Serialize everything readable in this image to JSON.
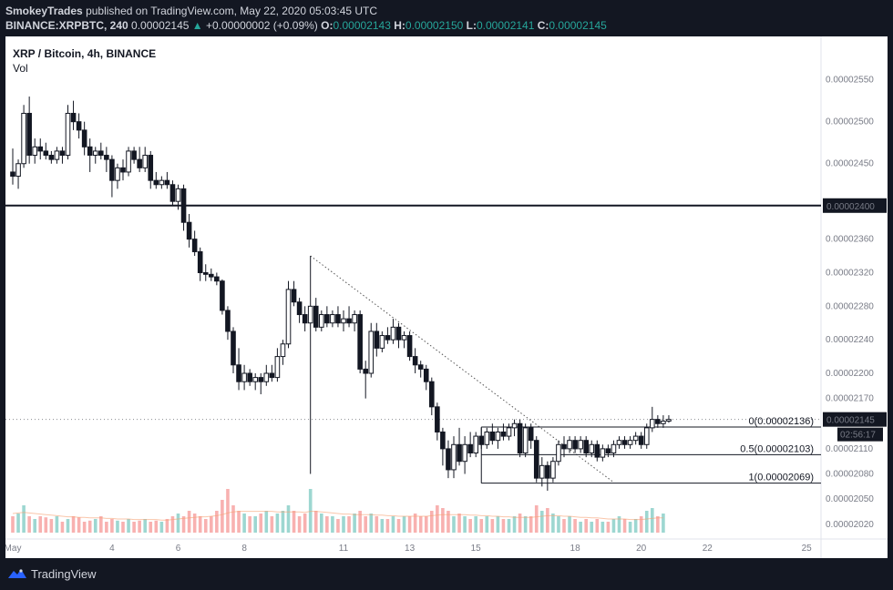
{
  "header": {
    "author": "SmokeyTrades",
    "published_text": "published on TradingView.com, May 22, 2020 05:03:45 UTC",
    "symbol": "BINANCE:XRPBTC, 240",
    "price": "0.00002145",
    "change_arrow": "▲",
    "change": "+0.00000002 (+0.09%)",
    "o_label": "O:",
    "o_value": "0.00002143",
    "h_label": "H:",
    "h_value": "0.00002150",
    "l_label": "L:",
    "l_value": "0.00002141",
    "c_label": "C:",
    "c_value": "0.00002145"
  },
  "legend": {
    "title": "XRP / Bitcoin, 4h, BINANCE",
    "volume_label": "Vol"
  },
  "footer": {
    "brand": "TradingView",
    "logo_icon": "tradingview-logo-icon"
  },
  "colors": {
    "background": "#ffffff",
    "candle_up": "#ffffff",
    "candle_down": "#131722",
    "grid_text": "#787b86",
    "vol_up": "#26a69a",
    "vol_down": "#ef5350"
  },
  "chart_data": {
    "type": "candlestick",
    "title": "XRP / Bitcoin, 4h, BINANCE",
    "ylim": [
      2.01e-05,
      2.58e-05
    ],
    "y_ticks": [
      "0.00002550",
      "0.00002500",
      "0.00002450",
      "0.00002400",
      "0.00002360",
      "0.00002320",
      "0.00002280",
      "0.00002240",
      "0.00002200",
      "0.00002170",
      "0.00002140",
      "0.00002110",
      "0.00002080",
      "0.00002050",
      "0.00002020"
    ],
    "x_ticks": [
      {
        "label": "May",
        "bar": 0
      },
      {
        "label": "4",
        "bar": 18
      },
      {
        "label": "6",
        "bar": 30
      },
      {
        "label": "8",
        "bar": 42
      },
      {
        "label": "11",
        "bar": 60
      },
      {
        "label": "13",
        "bar": 72
      },
      {
        "label": "15",
        "bar": 84
      },
      {
        "label": "18",
        "bar": 102
      },
      {
        "label": "20",
        "bar": 114
      },
      {
        "label": "22",
        "bar": 126
      },
      {
        "label": "25",
        "bar": 144
      }
    ],
    "ohlc": [
      [
        2.44e-05,
        2.468e-05,
        2.425e-05,
        2.435e-05
      ],
      [
        2.435e-05,
        2.455e-05,
        2.42e-05,
        2.45e-05
      ],
      [
        2.45e-05,
        2.52e-05,
        2.445e-05,
        2.51e-05
      ],
      [
        2.51e-05,
        2.53e-05,
        2.45e-05,
        2.46e-05
      ],
      [
        2.46e-05,
        2.48e-05,
        2.45e-05,
        2.47e-05
      ],
      [
        2.47e-05,
        2.48e-05,
        2.455e-05,
        2.465e-05
      ],
      [
        2.465e-05,
        2.475e-05,
        2.455e-05,
        2.46e-05
      ],
      [
        2.46e-05,
        2.465e-05,
        2.45e-05,
        2.455e-05
      ],
      [
        2.455e-05,
        2.47e-05,
        2.45e-05,
        2.465e-05
      ],
      [
        2.465e-05,
        2.47e-05,
        2.45e-05,
        2.46e-05
      ],
      [
        2.46e-05,
        2.52e-05,
        2.455e-05,
        2.51e-05
      ],
      [
        2.51e-05,
        2.525e-05,
        2.49e-05,
        2.5e-05
      ],
      [
        2.5e-05,
        2.51e-05,
        2.48e-05,
        2.49e-05
      ],
      [
        2.49e-05,
        2.5e-05,
        2.46e-05,
        2.47e-05
      ],
      [
        2.47e-05,
        2.48e-05,
        2.44e-05,
        2.46e-05
      ],
      [
        2.46e-05,
        2.47e-05,
        2.45e-05,
        2.465e-05
      ],
      [
        2.465e-05,
        2.475e-05,
        2.455e-05,
        2.46e-05
      ],
      [
        2.46e-05,
        2.47e-05,
        2.44e-05,
        2.455e-05
      ],
      [
        2.455e-05,
        2.46e-05,
        2.41e-05,
        2.43e-05
      ],
      [
        2.43e-05,
        2.45e-05,
        2.42e-05,
        2.445e-05
      ],
      [
        2.445e-05,
        2.455e-05,
        2.43e-05,
        2.44e-05
      ],
      [
        2.44e-05,
        2.47e-05,
        2.435e-05,
        2.465e-05
      ],
      [
        2.465e-05,
        2.47e-05,
        2.45e-05,
        2.455e-05
      ],
      [
        2.455e-05,
        2.47e-05,
        2.44e-05,
        2.445e-05
      ],
      [
        2.445e-05,
        2.47e-05,
        2.44e-05,
        2.46e-05
      ],
      [
        2.46e-05,
        2.465e-05,
        2.42e-05,
        2.43e-05
      ],
      [
        2.43e-05,
        2.44e-05,
        2.42e-05,
        2.425e-05
      ],
      [
        2.425e-05,
        2.435e-05,
        2.42e-05,
        2.43e-05
      ],
      [
        2.43e-05,
        2.44e-05,
        2.42e-05,
        2.425e-05
      ],
      [
        2.425e-05,
        2.43e-05,
        2.4e-05,
        2.405e-05
      ],
      [
        2.405e-05,
        2.425e-05,
        2.395e-05,
        2.42e-05
      ],
      [
        2.42e-05,
        2.425e-05,
        2.37e-05,
        2.38e-05
      ],
      [
        2.38e-05,
        2.39e-05,
        2.35e-05,
        2.36e-05
      ],
      [
        2.36e-05,
        2.37e-05,
        2.34e-05,
        2.345e-05
      ],
      [
        2.345e-05,
        2.35e-05,
        2.31e-05,
        2.32e-05
      ],
      [
        2.32e-05,
        2.33e-05,
        2.31e-05,
        2.318e-05
      ],
      [
        2.318e-05,
        2.325e-05,
        2.31e-05,
        2.315e-05
      ],
      [
        2.315e-05,
        2.32e-05,
        2.305e-05,
        2.31e-05
      ],
      [
        2.31e-05,
        2.312e-05,
        2.27e-05,
        2.275e-05
      ],
      [
        2.275e-05,
        2.28e-05,
        2.24e-05,
        2.25e-05
      ],
      [
        2.25e-05,
        2.255e-05,
        2.2e-05,
        2.21e-05
      ],
      [
        2.21e-05,
        2.23e-05,
        2.18e-05,
        2.19e-05
      ],
      [
        2.19e-05,
        2.21e-05,
        2.18e-05,
        2.2e-05
      ],
      [
        2.2e-05,
        2.205e-05,
        2.185e-05,
        2.19e-05
      ],
      [
        2.19e-05,
        2.2e-05,
        2.18e-05,
        2.195e-05
      ],
      [
        2.195e-05,
        2.2e-05,
        2.175e-05,
        2.19e-05
      ],
      [
        2.19e-05,
        2.21e-05,
        2.185e-05,
        2.2e-05
      ],
      [
        2.2e-05,
        2.21e-05,
        2.19e-05,
        2.195e-05
      ],
      [
        2.195e-05,
        2.23e-05,
        2.19e-05,
        2.22e-05
      ],
      [
        2.22e-05,
        2.24e-05,
        2.21e-05,
        2.235e-05
      ],
      [
        2.235e-05,
        2.31e-05,
        2.23e-05,
        2.3e-05
      ],
      [
        2.3e-05,
        2.31e-05,
        2.28e-05,
        2.285e-05
      ],
      [
        2.285e-05,
        2.29e-05,
        2.26e-05,
        2.27e-05
      ],
      [
        2.27e-05,
        2.28e-05,
        2.25e-05,
        2.26e-05
      ],
      [
        2.26e-05,
        2.34e-05,
        2.08e-05,
        2.28e-05
      ],
      [
        2.28e-05,
        2.29e-05,
        2.25e-05,
        2.255e-05
      ],
      [
        2.255e-05,
        2.275e-05,
        2.25e-05,
        2.27e-05
      ],
      [
        2.27e-05,
        2.28e-05,
        2.255e-05,
        2.26e-05
      ],
      [
        2.26e-05,
        2.275e-05,
        2.255e-05,
        2.27e-05
      ],
      [
        2.27e-05,
        2.28e-05,
        2.255e-05,
        2.26e-05
      ],
      [
        2.26e-05,
        2.275e-05,
        2.25e-05,
        2.265e-05
      ],
      [
        2.265e-05,
        2.28e-05,
        2.255e-05,
        2.26e-05
      ],
      [
        2.26e-05,
        2.275e-05,
        2.25e-05,
        2.27e-05
      ],
      [
        2.27e-05,
        2.275e-05,
        2.2e-05,
        2.205e-05
      ],
      [
        2.205e-05,
        2.215e-05,
        2.17e-05,
        2.2e-05
      ],
      [
        2.2e-05,
        2.26e-05,
        2.195e-05,
        2.25e-05
      ],
      [
        2.25e-05,
        2.26e-05,
        2.22e-05,
        2.23e-05
      ],
      [
        2.23e-05,
        2.25e-05,
        2.225e-05,
        2.245e-05
      ],
      [
        2.245e-05,
        2.255e-05,
        2.235e-05,
        2.24e-05
      ],
      [
        2.24e-05,
        2.265e-05,
        2.235e-05,
        2.255e-05
      ],
      [
        2.255e-05,
        2.26e-05,
        2.23e-05,
        2.24e-05
      ],
      [
        2.24e-05,
        2.25e-05,
        2.23e-05,
        2.245e-05
      ],
      [
        2.245e-05,
        2.25e-05,
        2.215e-05,
        2.22e-05
      ],
      [
        2.22e-05,
        2.23e-05,
        2.2e-05,
        2.21e-05
      ],
      [
        2.21e-05,
        2.215e-05,
        2.195e-05,
        2.205e-05
      ],
      [
        2.205e-05,
        2.21e-05,
        2.18e-05,
        2.19e-05
      ],
      [
        2.19e-05,
        2.195e-05,
        2.15e-05,
        2.16e-05
      ],
      [
        2.16e-05,
        2.165e-05,
        2.12e-05,
        2.13e-05
      ],
      [
        2.13e-05,
        2.135e-05,
        2.09e-05,
        2.11e-05
      ],
      [
        2.11e-05,
        2.12e-05,
        2.075e-05,
        2.085e-05
      ],
      [
        2.085e-05,
        2.125e-05,
        2.075e-05,
        2.115e-05
      ],
      [
        2.115e-05,
        2.135e-05,
        2.09e-05,
        2.095e-05
      ],
      [
        2.095e-05,
        2.125e-05,
        2.08e-05,
        2.115e-05
      ],
      [
        2.115e-05,
        2.13e-05,
        2.1e-05,
        2.105e-05
      ],
      [
        2.105e-05,
        2.13e-05,
        2.1e-05,
        2.125e-05
      ],
      [
        2.125e-05,
        2.135e-05,
        2.11e-05,
        2.115e-05
      ],
      [
        2.115e-05,
        2.135e-05,
        2.11e-05,
        2.13e-05
      ],
      [
        2.13e-05,
        2.14e-05,
        2.115e-05,
        2.12e-05
      ],
      [
        2.12e-05,
        2.135e-05,
        2.11e-05,
        2.13e-05
      ],
      [
        2.13e-05,
        2.14e-05,
        2.12e-05,
        2.125e-05
      ],
      [
        2.125e-05,
        2.14e-05,
        2.12e-05,
        2.135e-05
      ],
      [
        2.135e-05,
        2.145e-05,
        2.125e-05,
        2.14e-05
      ],
      [
        2.14e-05,
        2.145e-05,
        2.1e-05,
        2.105e-05
      ],
      [
        2.105e-05,
        2.14e-05,
        2.1e-05,
        2.135e-05
      ],
      [
        2.135e-05,
        2.14e-05,
        2.11e-05,
        2.12e-05
      ],
      [
        2.12e-05,
        2.125e-05,
        2.07e-05,
        2.075e-05
      ],
      [
        2.075e-05,
        2.1e-05,
        2.065e-05,
        2.09e-05
      ],
      [
        2.09e-05,
        2.095e-05,
        2.06e-05,
        2.075e-05
      ],
      [
        2.075e-05,
        2.1e-05,
        2.07e-05,
        2.095e-05
      ],
      [
        2.095e-05,
        2.12e-05,
        2.09e-05,
        2.115e-05
      ],
      [
        2.115e-05,
        2.125e-05,
        2.1e-05,
        2.11e-05
      ],
      [
        2.11e-05,
        2.125e-05,
        2.105e-05,
        2.12e-05
      ],
      [
        2.12e-05,
        2.125e-05,
        2.105e-05,
        2.11e-05
      ],
      [
        2.11e-05,
        2.125e-05,
        2.105e-05,
        2.12e-05
      ],
      [
        2.12e-05,
        2.125e-05,
        2.1e-05,
        2.105e-05
      ],
      [
        2.105e-05,
        2.12e-05,
        2.1e-05,
        2.115e-05
      ],
      [
        2.115e-05,
        2.12e-05,
        2.095e-05,
        2.1e-05
      ],
      [
        2.1e-05,
        2.115e-05,
        2.095e-05,
        2.11e-05
      ],
      [
        2.11e-05,
        2.115e-05,
        2.1e-05,
        2.105e-05
      ],
      [
        2.105e-05,
        2.12e-05,
        2.1e-05,
        2.115e-05
      ],
      [
        2.115e-05,
        2.125e-05,
        2.11e-05,
        2.12e-05
      ],
      [
        2.12e-05,
        2.125e-05,
        2.11e-05,
        2.115e-05
      ],
      [
        2.115e-05,
        2.125e-05,
        2.11e-05,
        2.12e-05
      ],
      [
        2.12e-05,
        2.13e-05,
        2.115e-05,
        2.125e-05
      ],
      [
        2.125e-05,
        2.13e-05,
        2.11e-05,
        2.115e-05
      ],
      [
        2.115e-05,
        2.14e-05,
        2.11e-05,
        2.135e-05
      ],
      [
        2.135e-05,
        2.16e-05,
        2.13e-05,
        2.145e-05
      ],
      [
        2.145e-05,
        2.15e-05,
        2.135e-05,
        2.14e-05
      ],
      [
        2.14e-05,
        2.15e-05,
        2.135e-05,
        2.143e-05
      ],
      [
        2.143e-05,
        2.15e-05,
        2.141e-05,
        2.145e-05
      ]
    ],
    "volume_max": 1.0,
    "volume": [
      0.3,
      0.35,
      0.5,
      0.3,
      0.25,
      0.3,
      0.28,
      0.25,
      0.3,
      0.2,
      0.25,
      0.3,
      0.28,
      0.2,
      0.22,
      0.25,
      0.3,
      0.2,
      0.25,
      0.22,
      0.2,
      0.25,
      0.2,
      0.22,
      0.25,
      0.2,
      0.22,
      0.2,
      0.25,
      0.3,
      0.35,
      0.3,
      0.4,
      0.35,
      0.3,
      0.25,
      0.3,
      0.4,
      0.6,
      0.8,
      0.5,
      0.4,
      0.35,
      0.3,
      0.3,
      0.35,
      0.4,
      0.3,
      0.35,
      0.4,
      0.5,
      0.4,
      0.3,
      0.35,
      0.8,
      0.4,
      0.35,
      0.3,
      0.3,
      0.25,
      0.3,
      0.3,
      0.35,
      0.4,
      0.3,
      0.35,
      0.3,
      0.25,
      0.25,
      0.3,
      0.25,
      0.3,
      0.3,
      0.35,
      0.3,
      0.3,
      0.4,
      0.5,
      0.45,
      0.4,
      0.3,
      0.35,
      0.3,
      0.25,
      0.3,
      0.25,
      0.3,
      0.25,
      0.3,
      0.25,
      0.25,
      0.3,
      0.35,
      0.3,
      0.3,
      0.5,
      0.4,
      0.45,
      0.35,
      0.3,
      0.25,
      0.3,
      0.25,
      0.2,
      0.25,
      0.2,
      0.25,
      0.2,
      0.2,
      0.25,
      0.3,
      0.25,
      0.2,
      0.25,
      0.3,
      0.4,
      0.45,
      0.3,
      0.35
    ],
    "volume_ma": [
      0.35,
      0.36,
      0.37,
      0.36,
      0.35,
      0.34,
      0.33,
      0.32,
      0.31,
      0.3,
      0.29,
      0.29,
      0.28,
      0.28,
      0.27,
      0.27,
      0.27,
      0.26,
      0.26,
      0.25,
      0.25,
      0.25,
      0.24,
      0.24,
      0.24,
      0.24,
      0.24,
      0.23,
      0.23,
      0.24,
      0.25,
      0.26,
      0.27,
      0.28,
      0.29,
      0.29,
      0.3,
      0.31,
      0.33,
      0.36,
      0.38,
      0.39,
      0.39,
      0.39,
      0.39,
      0.39,
      0.39,
      0.39,
      0.38,
      0.38,
      0.38,
      0.38,
      0.38,
      0.37,
      0.39,
      0.39,
      0.38,
      0.37,
      0.36,
      0.35,
      0.34,
      0.34,
      0.33,
      0.33,
      0.33,
      0.33,
      0.32,
      0.32,
      0.31,
      0.31,
      0.3,
      0.3,
      0.3,
      0.3,
      0.3,
      0.3,
      0.31,
      0.32,
      0.33,
      0.33,
      0.33,
      0.33,
      0.33,
      0.32,
      0.32,
      0.31,
      0.31,
      0.3,
      0.3,
      0.29,
      0.29,
      0.28,
      0.28,
      0.28,
      0.28,
      0.29,
      0.3,
      0.31,
      0.31,
      0.31,
      0.3,
      0.3,
      0.29,
      0.28,
      0.28,
      0.27,
      0.27,
      0.26,
      0.25,
      0.25,
      0.25,
      0.25,
      0.24,
      0.24,
      0.24,
      0.25,
      0.26,
      0.27,
      0.27
    ],
    "horizontal_line": {
      "value": 2.4e-05,
      "label": "0.00002400"
    },
    "trendline": {
      "from": [
        54,
        2.34e-05
      ],
      "to": [
        109,
        2.07e-05
      ]
    },
    "fibonacci": [
      {
        "label": "0(0.00002136)",
        "value": 2.136e-05,
        "from_bar": 85
      },
      {
        "label": "0.5(0.00002103)",
        "value": 2.103e-05,
        "from_bar": 85
      },
      {
        "label": "1(0.00002069)",
        "value": 2.069e-05,
        "from_bar": 85
      }
    ],
    "price_tag": {
      "value": 2.145e-05,
      "label": "0.00002145",
      "countdown": "02:56:17"
    }
  }
}
